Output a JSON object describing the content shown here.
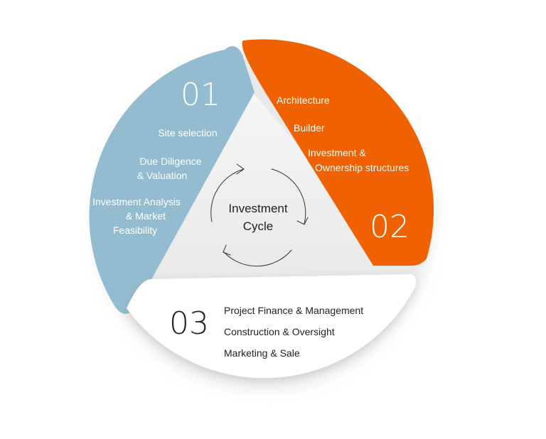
{
  "center": {
    "title_line1": "Investment",
    "title_line2": "Cycle"
  },
  "segments": [
    {
      "number": "01",
      "color": "#94bcd0",
      "text_color": "#ffffff",
      "items": [
        "Site selection",
        "Due Diligence",
        "& Valuation",
        "Investment Analysis",
        "& Market",
        "Feasibility"
      ]
    },
    {
      "number": "02",
      "color": "#ef6101",
      "text_color": "#ffffff",
      "items": [
        "Architecture",
        "Builder",
        "Investment &",
        "Ownership structures"
      ]
    },
    {
      "number": "03",
      "color": "#ffffff",
      "text_color": "#222222",
      "items": [
        "Project Finance & Management",
        "Construction & Oversight",
        "Marketing & Sale"
      ]
    }
  ],
  "colors": {
    "shadow": "#e6e6e6",
    "inner_triangle": "#f1f1f1",
    "cycle_arrows": "#333333"
  }
}
